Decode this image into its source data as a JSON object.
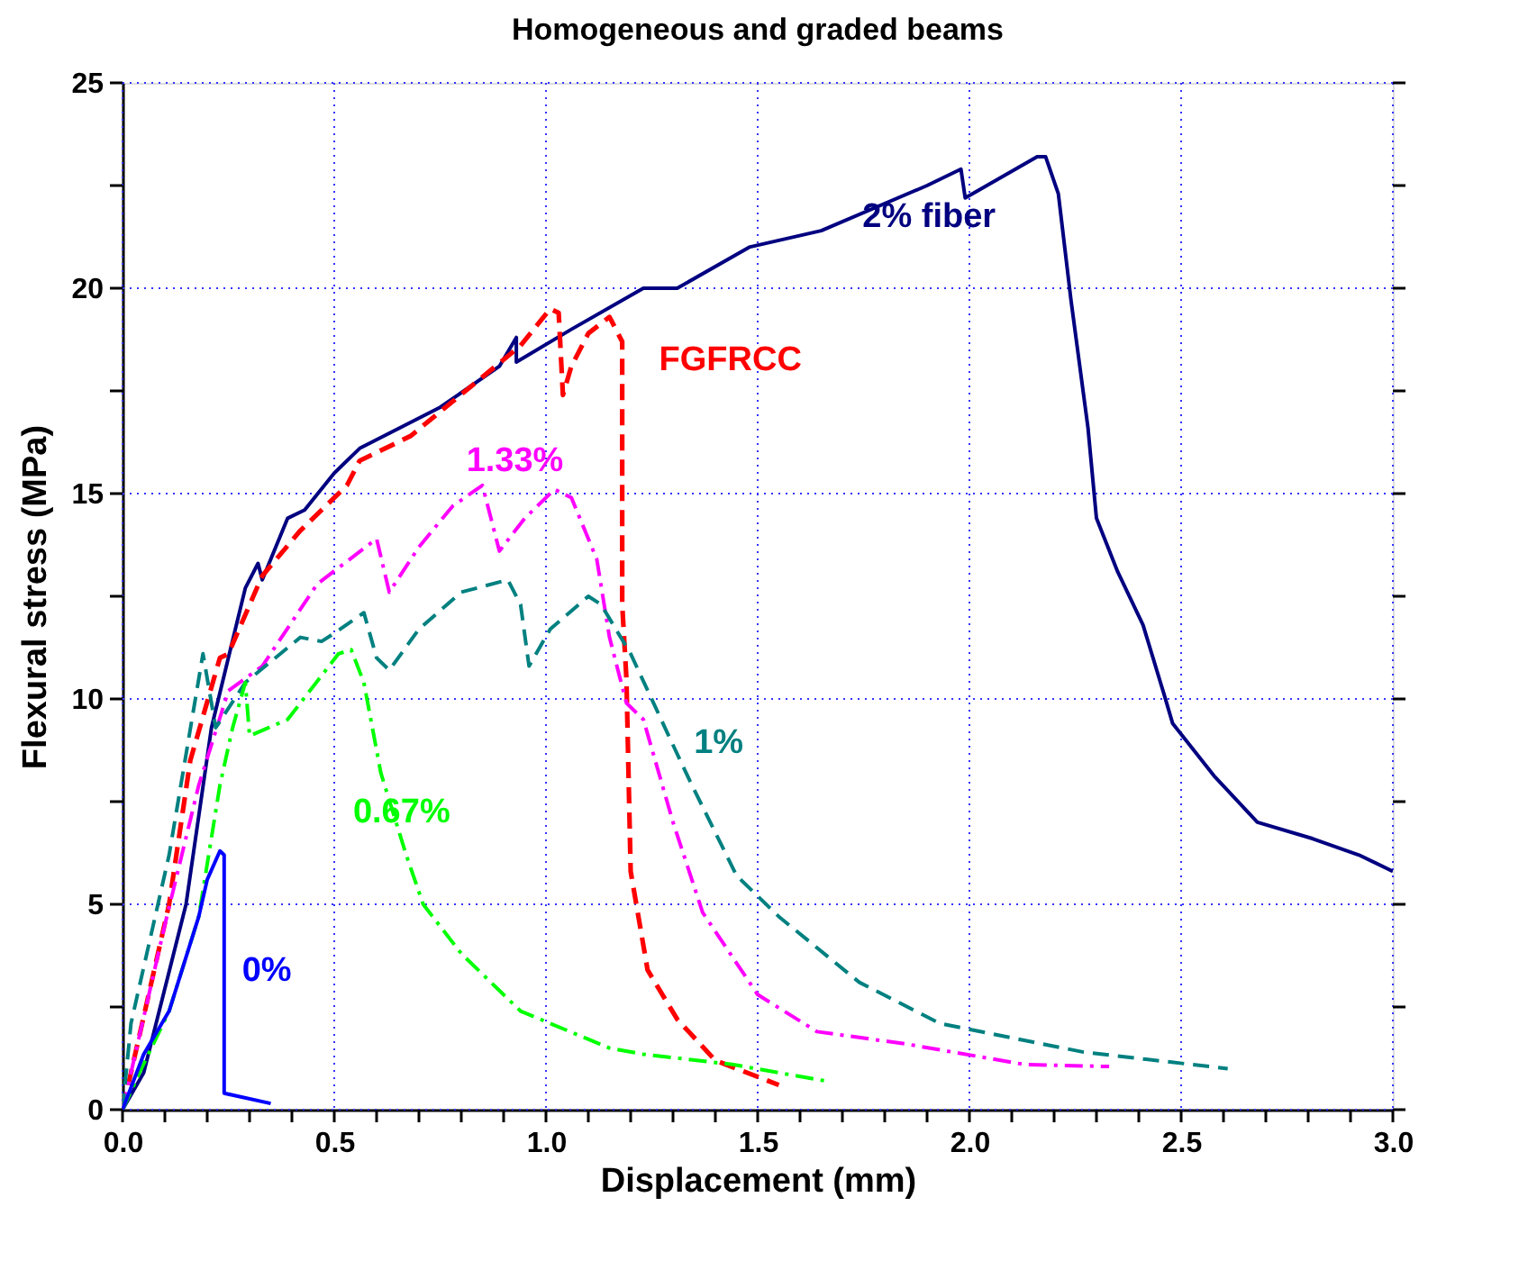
{
  "chart_data": {
    "type": "line",
    "title": "Homogeneous and graded beams",
    "xlabel": "Displacement (mm)",
    "ylabel": "Flexural stress (MPa)",
    "xlim": [
      0,
      3
    ],
    "ylim": [
      0,
      25
    ],
    "xticks": [
      {
        "value": 0,
        "label": "0.0"
      },
      {
        "value": 0.1,
        "label": null
      },
      {
        "value": 0.2,
        "label": null
      },
      {
        "value": 0.3,
        "label": null
      },
      {
        "value": 0.4,
        "label": null
      },
      {
        "value": 0.5,
        "label": "0.5"
      },
      {
        "value": 0.6,
        "label": null
      },
      {
        "value": 0.7,
        "label": null
      },
      {
        "value": 0.8,
        "label": null
      },
      {
        "value": 0.9,
        "label": null
      },
      {
        "value": 1,
        "label": "1.0"
      },
      {
        "value": 1.1,
        "label": null
      },
      {
        "value": 1.2,
        "label": null
      },
      {
        "value": 1.3,
        "label": null
      },
      {
        "value": 1.4,
        "label": null
      },
      {
        "value": 1.5,
        "label": "1.5"
      },
      {
        "value": 1.6,
        "label": null
      },
      {
        "value": 1.7,
        "label": null
      },
      {
        "value": 1.8,
        "label": null
      },
      {
        "value": 1.9,
        "label": null
      },
      {
        "value": 2,
        "label": "2.0"
      },
      {
        "value": 2.1,
        "label": null
      },
      {
        "value": 2.2,
        "label": null
      },
      {
        "value": 2.3,
        "label": null
      },
      {
        "value": 2.4,
        "label": null
      },
      {
        "value": 2.5,
        "label": "2.5"
      },
      {
        "value": 2.6,
        "label": null
      },
      {
        "value": 2.7,
        "label": null
      },
      {
        "value": 2.8,
        "label": null
      },
      {
        "value": 2.9,
        "label": null
      },
      {
        "value": 3,
        "label": "3.0"
      }
    ],
    "yticks": [
      0,
      {
        "value": 2.5,
        "label": null
      },
      5,
      {
        "value": 7.5,
        "label": null
      },
      10,
      {
        "value": 12.5,
        "label": null
      },
      15,
      {
        "value": 17.5,
        "label": null
      },
      20,
      {
        "value": 22.5,
        "label": null
      },
      25
    ],
    "grid": true,
    "marker": "none",
    "series": [
      {
        "name": "2% fiber",
        "color": "#000080",
        "line_style": "solid",
        "x": [
          0,
          0.05,
          0.15,
          0.21,
          0.29,
          0.32,
          0.33,
          0.39,
          0.43,
          0.5,
          0.56,
          0.75,
          0.89,
          0.93,
          0.93,
          1.06,
          1.23,
          1.31,
          1.48,
          1.65,
          1.9,
          1.98,
          1.99,
          2.16,
          2.18,
          2.21,
          2.24,
          2.28,
          2.3,
          2.35,
          2.41,
          2.46,
          2.48,
          2.58,
          2.68,
          2.81,
          2.92,
          3.0
        ],
        "values": [
          0,
          0.9,
          5.0,
          9.3,
          12.7,
          13.3,
          12.9,
          14.4,
          14.6,
          15.5,
          16.1,
          17.1,
          18.1,
          18.8,
          18.2,
          19.0,
          20.0,
          20.0,
          21.0,
          21.4,
          22.5,
          22.9,
          22.2,
          23.2,
          23.2,
          22.3,
          19.7,
          16.6,
          14.4,
          13.1,
          11.8,
          10.1,
          9.4,
          8.1,
          7.0,
          6.6,
          6.2,
          5.8
        ]
      },
      {
        "name": "FGFRCC",
        "color": "#ff0000",
        "line_style": "dashed",
        "x": [
          0,
          0.02,
          0.11,
          0.16,
          0.23,
          0.25,
          0.33,
          0.42,
          0.53,
          0.56,
          0.68,
          0.81,
          0.94,
          1.01,
          1.03,
          1.04,
          1.06,
          1.1,
          1.15,
          1.18,
          1.18,
          1.18,
          1.19,
          1.2,
          1.24,
          1.31,
          1.4,
          1.55
        ],
        "values": [
          0,
          0.9,
          5.0,
          8.5,
          11.0,
          11.1,
          13.0,
          14.1,
          15.2,
          15.8,
          16.4,
          17.5,
          18.6,
          19.5,
          19.4,
          17.4,
          18.1,
          18.9,
          19.3,
          18.7,
          16.6,
          12.3,
          10.5,
          5.8,
          3.4,
          2.2,
          1.2,
          0.6
        ]
      },
      {
        "name": "1.33%",
        "color": "#ff00ff",
        "line_style": "dashdot",
        "x": [
          0,
          0.1,
          0.18,
          0.25,
          0.33,
          0.46,
          0.6,
          0.63,
          0.7,
          0.78,
          0.85,
          0.89,
          0.95,
          1.02,
          1.06,
          1.12,
          1.15,
          1.19,
          1.23,
          1.3,
          1.37,
          1.5,
          1.64,
          1.85,
          2.13,
          2.33
        ],
        "values": [
          0,
          4.5,
          7.9,
          10.2,
          10.8,
          12.8,
          13.9,
          12.6,
          13.7,
          14.7,
          15.2,
          13.6,
          14.4,
          15.1,
          14.9,
          13.4,
          11.5,
          9.9,
          9.5,
          7.0,
          4.8,
          2.8,
          1.9,
          1.6,
          1.1,
          1.05
        ]
      },
      {
        "name": "1%",
        "color": "#008080",
        "line_style": "dashed",
        "x": [
          0,
          0.02,
          0.11,
          0.19,
          0.22,
          0.29,
          0.42,
          0.47,
          0.5,
          0.57,
          0.6,
          0.63,
          0.7,
          0.8,
          0.91,
          0.94,
          0.96,
          1.01,
          1.1,
          1.13,
          1.2,
          1.29,
          1.34,
          1.45,
          1.55,
          1.74,
          1.93,
          2.27,
          2.61
        ],
        "values": [
          0,
          2.1,
          6.2,
          11.1,
          9.3,
          10.4,
          11.5,
          11.4,
          11.6,
          12.1,
          11.0,
          10.7,
          11.7,
          12.6,
          12.9,
          12.3,
          10.8,
          11.7,
          12.5,
          12.3,
          11.1,
          9.1,
          8.0,
          5.7,
          4.7,
          3.1,
          2.1,
          1.4,
          1.0
        ]
      },
      {
        "name": "0.67%",
        "color": "#00ff00",
        "line_style": "dashdot",
        "x": [
          0,
          0.04,
          0.11,
          0.18,
          0.23,
          0.26,
          0.29,
          0.3,
          0.39,
          0.51,
          0.54,
          0.57,
          0.61,
          0.67,
          0.71,
          0.8,
          0.94,
          1.15,
          1.23,
          1.44,
          1.66
        ],
        "values": [
          0,
          0.9,
          2.4,
          4.7,
          7.9,
          9.3,
          10.4,
          9.1,
          9.5,
          11.1,
          11.2,
          10.4,
          8.2,
          6.2,
          5.0,
          3.8,
          2.4,
          1.5,
          1.35,
          1.1,
          0.7
        ]
      },
      {
        "name": "0%",
        "color": "#0000ff",
        "line_style": "solid",
        "x": [
          0,
          0.05,
          0.11,
          0.18,
          0.2,
          0.23,
          0.24,
          0.24,
          0.35
        ],
        "values": [
          0,
          1.35,
          2.4,
          4.7,
          5.6,
          6.3,
          6.2,
          0.4,
          0.15
        ]
      }
    ]
  }
}
